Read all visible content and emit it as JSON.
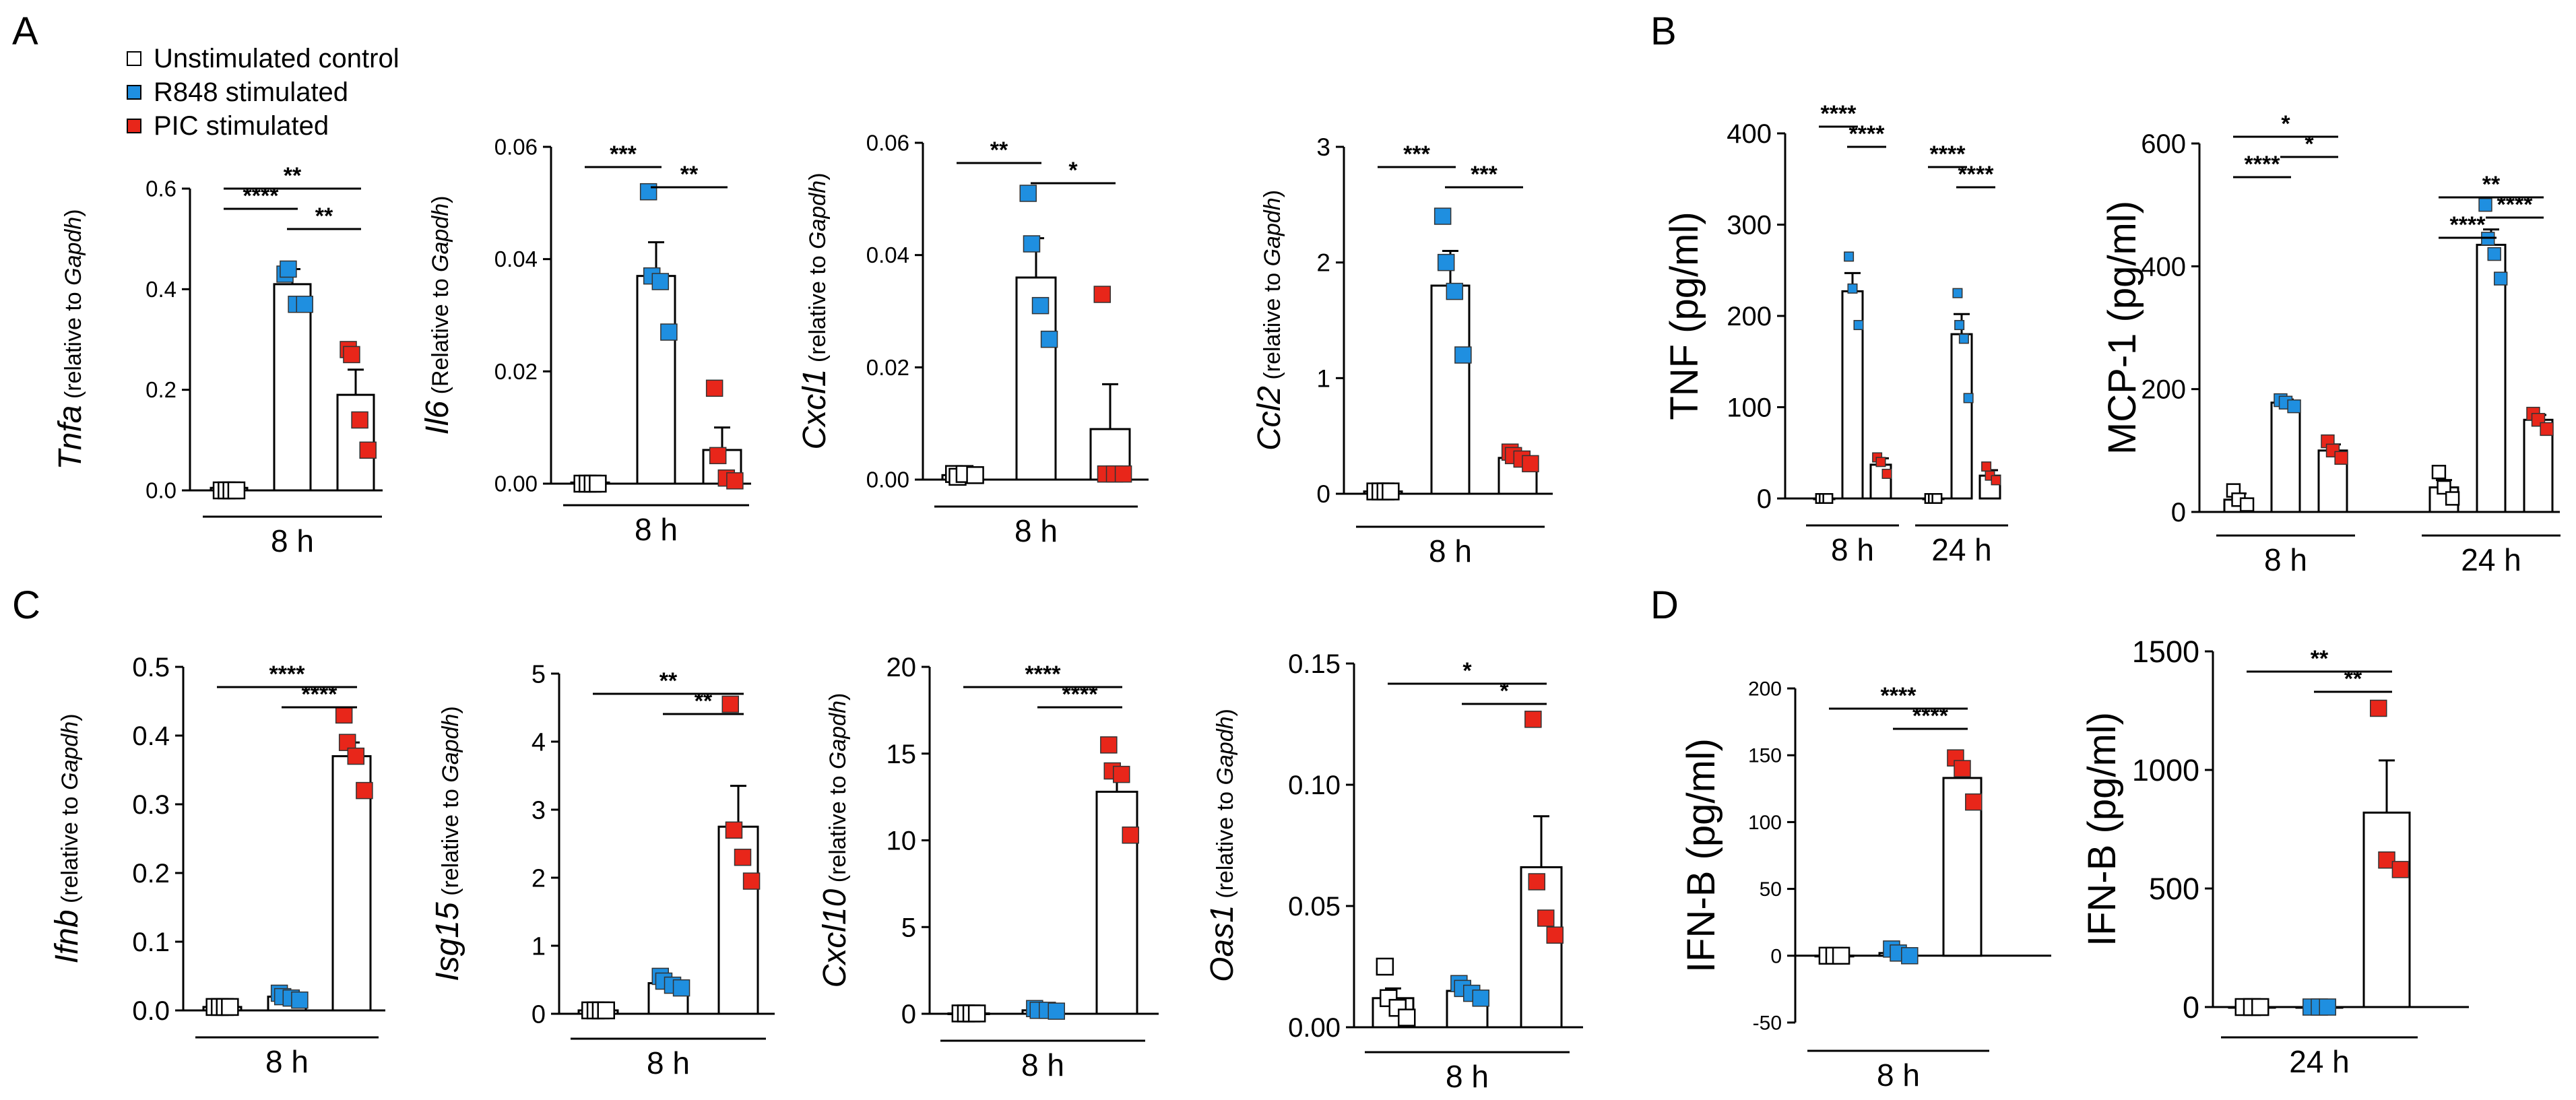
{
  "legend": {
    "items": [
      {
        "label": "Unstimulated control",
        "color": "#ffffff"
      },
      {
        "label": "R848 stimulated",
        "color": "#1f8fe0"
      },
      {
        "label": "PIC stimulated",
        "color": "#e8261a"
      }
    ]
  },
  "panel_letters": [
    "A",
    "B",
    "C",
    "D"
  ],
  "chart_data": [
    {
      "id": "tnfa",
      "type": "bar",
      "panel": "A",
      "ylabel_italic": "Tnfa",
      "ylabel_rest": " (relative to ",
      "ylabel_gene": "Gapdh",
      "ylabel_end": ")",
      "yticks": [
        "0.0",
        "0.2",
        "0.4",
        "0.6"
      ],
      "ylim": [
        0,
        0.6
      ],
      "groups": [
        "8 h"
      ],
      "bars": [
        {
          "cond": "control",
          "mean": 0.005,
          "sem": 0,
          "points": [
            0,
            0,
            0,
            0
          ]
        },
        {
          "cond": "R848",
          "mean": 0.41,
          "sem": 0.03,
          "points": [
            0.43,
            0.44,
            0.37,
            0.37
          ]
        },
        {
          "cond": "PIC",
          "mean": 0.19,
          "sem": 0.05,
          "points": [
            0.28,
            0.27,
            0.14,
            0.08
          ]
        }
      ],
      "sig": [
        {
          "from": 0,
          "to": 2,
          "label": "**"
        },
        {
          "from": 0,
          "to": 1,
          "label": "****"
        },
        {
          "from": 1,
          "to": 2,
          "label": "**"
        }
      ]
    },
    {
      "id": "il6",
      "type": "bar",
      "panel": "A",
      "ylabel_italic": "Il6",
      "ylabel_rest": " (Relative to ",
      "ylabel_gene": "Gapdh",
      "ylabel_end": ")",
      "yticks": [
        "0.00",
        "0.02",
        "0.04",
        "0.06"
      ],
      "ylim": [
        0,
        0.06
      ],
      "groups": [
        "8 h"
      ],
      "bars": [
        {
          "cond": "control",
          "mean": 0.0002,
          "sem": 0,
          "points": [
            0,
            0,
            0,
            0
          ]
        },
        {
          "cond": "R848",
          "mean": 0.037,
          "sem": 0.006,
          "points": [
            0.052,
            0.037,
            0.036,
            0.027
          ]
        },
        {
          "cond": "PIC",
          "mean": 0.006,
          "sem": 0.004,
          "points": [
            0.017,
            0.005,
            0.001,
            0.0005
          ]
        }
      ],
      "sig": [
        {
          "from": 0,
          "to": 1,
          "label": "***"
        },
        {
          "from": 1,
          "to": 2,
          "label": "**"
        }
      ]
    },
    {
      "id": "cxcl1",
      "type": "bar",
      "panel": "A",
      "ylabel_italic": "Cxcl1",
      "ylabel_rest": " (relative to ",
      "ylabel_gene": "Gapdh",
      "ylabel_end": ")",
      "yticks": [
        "0.00",
        "0.02",
        "0.04",
        "0.06"
      ],
      "ylim": [
        0,
        0.06
      ],
      "groups": [
        "8 h"
      ],
      "bars": [
        {
          "cond": "control",
          "mean": 0.0008,
          "sem": 0.0004,
          "points": [
            0.001,
            0.0005,
            0.001,
            0.0008
          ]
        },
        {
          "cond": "R848",
          "mean": 0.036,
          "sem": 0.007,
          "points": [
            0.051,
            0.042,
            0.031,
            0.025
          ]
        },
        {
          "cond": "PIC",
          "mean": 0.009,
          "sem": 0.008,
          "points": [
            0.033,
            0.001,
            0.001,
            0.001
          ]
        }
      ],
      "sig": [
        {
          "from": 0,
          "to": 1,
          "label": "**"
        },
        {
          "from": 1,
          "to": 2,
          "label": "*"
        }
      ]
    },
    {
      "id": "ccl2",
      "type": "bar",
      "panel": "A",
      "ylabel_italic": "Ccl2",
      "ylabel_rest": " (relative to ",
      "ylabel_gene": "Gapdh",
      "ylabel_end": ")",
      "yticks": [
        "0",
        "1",
        "2",
        "3"
      ],
      "ylim": [
        0,
        3
      ],
      "groups": [
        "8 h"
      ],
      "bars": [
        {
          "cond": "control",
          "mean": 0.02,
          "sem": 0,
          "points": [
            0.02,
            0.02,
            0.02,
            0.02
          ]
        },
        {
          "cond": "R848",
          "mean": 1.8,
          "sem": 0.3,
          "points": [
            2.4,
            2.0,
            1.75,
            1.2
          ]
        },
        {
          "cond": "PIC",
          "mean": 0.31,
          "sem": 0.03,
          "points": [
            0.36,
            0.33,
            0.3,
            0.26
          ]
        }
      ],
      "sig": [
        {
          "from": 0,
          "to": 1,
          "label": "***"
        },
        {
          "from": 1,
          "to": 2,
          "label": "***"
        }
      ]
    },
    {
      "id": "tnf",
      "type": "bar",
      "panel": "B",
      "ylabel": "TNF (pg/ml)",
      "yticks": [
        "0",
        "100",
        "200",
        "300",
        "400"
      ],
      "ylim": [
        0,
        400
      ],
      "groups": [
        "8 h",
        "24 h"
      ],
      "bars": [
        {
          "cond": "control",
          "mean": 0,
          "sem": 0,
          "points": [
            0,
            0,
            0
          ]
        },
        {
          "cond": "R848",
          "mean": 227,
          "sem": 20,
          "points": [
            265,
            230,
            190
          ]
        },
        {
          "cond": "PIC",
          "mean": 37,
          "sem": 7,
          "points": [
            45,
            40,
            27
          ]
        },
        {
          "cond": "control",
          "mean": 0,
          "sem": 0,
          "points": [
            0,
            0,
            0
          ]
        },
        {
          "cond": "R848",
          "mean": 180,
          "sem": 22,
          "points": [
            225,
            190,
            175,
            110
          ]
        },
        {
          "cond": "PIC",
          "mean": 25,
          "sem": 6,
          "points": [
            35,
            25,
            20
          ]
        }
      ],
      "sig": [
        {
          "from": 0,
          "to": 1,
          "label": "****"
        },
        {
          "from": 1,
          "to": 2,
          "label": "****"
        },
        {
          "from": 3,
          "to": 4,
          "label": "****"
        },
        {
          "from": 4,
          "to": 5,
          "label": "****"
        }
      ]
    },
    {
      "id": "mcp1",
      "type": "bar",
      "panel": "B",
      "ylabel": "MCP-1 (pg/ml)",
      "yticks": [
        "0",
        "200",
        "400",
        "600"
      ],
      "ylim": [
        0,
        600
      ],
      "groups": [
        "8 h",
        "24 h"
      ],
      "bars": [
        {
          "cond": "control",
          "mean": 20,
          "sem": 10,
          "points": [
            35,
            20,
            12
          ]
        },
        {
          "cond": "R848",
          "mean": 178,
          "sem": 5,
          "points": [
            182,
            178,
            172
          ]
        },
        {
          "cond": "PIC",
          "mean": 100,
          "sem": 10,
          "points": [
            115,
            100,
            88
          ]
        },
        {
          "cond": "control",
          "mean": 40,
          "sem": 12,
          "points": [
            65,
            40,
            22
          ]
        },
        {
          "cond": "R848",
          "mean": 435,
          "sem": 25,
          "points": [
            500,
            445,
            420,
            380
          ]
        },
        {
          "cond": "PIC",
          "mean": 150,
          "sem": 8,
          "points": [
            160,
            150,
            135
          ]
        }
      ],
      "sig": [
        {
          "from": 0,
          "to": 2,
          "label": "*"
        },
        {
          "from": 1,
          "to": 2,
          "label": "*"
        },
        {
          "from": 0,
          "to": 1,
          "label": "****"
        },
        {
          "from": 3,
          "to": 5,
          "label": "**"
        },
        {
          "from": 4,
          "to": 5,
          "label": "****"
        },
        {
          "from": 3,
          "to": 4,
          "label": "****"
        }
      ]
    },
    {
      "id": "ifnb",
      "type": "bar",
      "panel": "C",
      "ylabel_italic": "Ifnb",
      "ylabel_rest": " (relative to ",
      "ylabel_gene": "Gapdh",
      "ylabel_end": ")",
      "yticks": [
        "0.0",
        "0.1",
        "0.2",
        "0.3",
        "0.4",
        "0.5"
      ],
      "ylim": [
        0,
        0.5
      ],
      "groups": [
        "8 h"
      ],
      "bars": [
        {
          "cond": "control",
          "mean": 0.005,
          "sem": 0.002,
          "points": [
            0.005,
            0.005,
            0.005,
            0.005
          ]
        },
        {
          "cond": "R848",
          "mean": 0.02,
          "sem": 0.003,
          "points": [
            0.025,
            0.02,
            0.018,
            0.015
          ]
        },
        {
          "cond": "PIC",
          "mean": 0.37,
          "sem": 0.02,
          "points": [
            0.43,
            0.39,
            0.37,
            0.32
          ]
        }
      ],
      "sig": [
        {
          "from": 0,
          "to": 2,
          "label": "****"
        },
        {
          "from": 1,
          "to": 2,
          "label": "****"
        }
      ]
    },
    {
      "id": "isg15",
      "type": "bar",
      "panel": "C",
      "ylabel_italic": "Isg15",
      "ylabel_rest": " (relative to ",
      "ylabel_gene": "Gapdh",
      "ylabel_end": ")",
      "yticks": [
        "0",
        "1",
        "2",
        "3",
        "4",
        "5"
      ],
      "ylim": [
        0,
        5
      ],
      "groups": [
        "8 h"
      ],
      "bars": [
        {
          "cond": "control",
          "mean": 0.05,
          "sem": 0,
          "points": [
            0.05,
            0.05,
            0.05,
            0.05
          ]
        },
        {
          "cond": "R848",
          "mean": 0.45,
          "sem": 0.05,
          "points": [
            0.55,
            0.48,
            0.42,
            0.38
          ]
        },
        {
          "cond": "PIC",
          "mean": 2.75,
          "sem": 0.6,
          "points": [
            4.55,
            2.7,
            2.3,
            1.95
          ]
        }
      ],
      "sig": [
        {
          "from": 0,
          "to": 2,
          "label": "**"
        },
        {
          "from": 1,
          "to": 2,
          "label": "**"
        }
      ]
    },
    {
      "id": "cxcl10",
      "type": "bar",
      "panel": "C",
      "ylabel_italic": "Cxcl10",
      "ylabel_rest": " (relative to ",
      "ylabel_gene": "Gapdh",
      "ylabel_end": ")",
      "yticks": [
        "0",
        "5",
        "10",
        "15",
        "20"
      ],
      "ylim": [
        0,
        20
      ],
      "groups": [
        "8 h"
      ],
      "bars": [
        {
          "cond": "control",
          "mean": 0.02,
          "sem": 0,
          "points": [
            0.02,
            0.02,
            0.02,
            0.02
          ]
        },
        {
          "cond": "R848",
          "mean": 0.2,
          "sem": 0.05,
          "points": [
            0.3,
            0.2,
            0.2,
            0.15
          ]
        },
        {
          "cond": "PIC",
          "mean": 12.8,
          "sem": 1.1,
          "points": [
            15.5,
            14.0,
            13.8,
            10.3
          ]
        }
      ],
      "sig": [
        {
          "from": 0,
          "to": 2,
          "label": "****"
        },
        {
          "from": 1,
          "to": 2,
          "label": "****"
        }
      ]
    },
    {
      "id": "oas1",
      "type": "bar",
      "panel": "C",
      "ylabel_italic": "Oas1",
      "ylabel_rest": " (relative to ",
      "ylabel_gene": "Gapdh",
      "ylabel_end": ")",
      "yticks": [
        "0.00",
        "0.05",
        "0.10",
        "0.15"
      ],
      "ylim": [
        0,
        0.15
      ],
      "groups": [
        "8 h"
      ],
      "bars": [
        {
          "cond": "control",
          "mean": 0.012,
          "sem": 0.004,
          "points": [
            0.025,
            0.012,
            0.008,
            0.004
          ]
        },
        {
          "cond": "R848",
          "mean": 0.015,
          "sem": 0.002,
          "points": [
            0.018,
            0.016,
            0.014,
            0.012
          ]
        },
        {
          "cond": "PIC",
          "mean": 0.066,
          "sem": 0.021,
          "points": [
            0.127,
            0.06,
            0.045,
            0.038
          ]
        }
      ],
      "sig": [
        {
          "from": 0,
          "to": 2,
          "label": "*"
        },
        {
          "from": 1,
          "to": 2,
          "label": "*"
        }
      ]
    },
    {
      "id": "ifnb8",
      "type": "bar",
      "panel": "D",
      "ylabel": "IFN-B (pg/ml)",
      "yticks": [
        "-50",
        "0",
        "50",
        "100",
        "150",
        "200"
      ],
      "ylim": [
        -50,
        200
      ],
      "groups": [
        "8 h"
      ],
      "bars": [
        {
          "cond": "control",
          "mean": 0,
          "sem": 0,
          "points": [
            0,
            0,
            0
          ]
        },
        {
          "cond": "R848",
          "mean": 2,
          "sem": 2,
          "points": [
            5,
            2,
            0
          ]
        },
        {
          "cond": "PIC",
          "mean": 133,
          "sem": 10,
          "points": [
            148,
            140,
            115
          ]
        }
      ],
      "sig": [
        {
          "from": 0,
          "to": 2,
          "label": "****"
        },
        {
          "from": 1,
          "to": 2,
          "label": "****"
        }
      ]
    },
    {
      "id": "ifnb24",
      "type": "bar",
      "panel": "D",
      "ylabel": "IFN-B (pg/ml)",
      "yticks": [
        "0",
        "500",
        "1000",
        "1500"
      ],
      "ylim": [
        0,
        1500
      ],
      "groups": [
        "24 h"
      ],
      "bars": [
        {
          "cond": "control",
          "mean": 0,
          "sem": 0,
          "points": [
            0,
            0,
            0
          ]
        },
        {
          "cond": "R848",
          "mean": 0,
          "sem": 0,
          "points": [
            0,
            0,
            0
          ]
        },
        {
          "cond": "PIC",
          "mean": 820,
          "sem": 220,
          "points": [
            1260,
            620,
            580
          ]
        }
      ],
      "sig": [
        {
          "from": 0,
          "to": 2,
          "label": "**"
        },
        {
          "from": 1,
          "to": 2,
          "label": "**"
        }
      ]
    }
  ]
}
